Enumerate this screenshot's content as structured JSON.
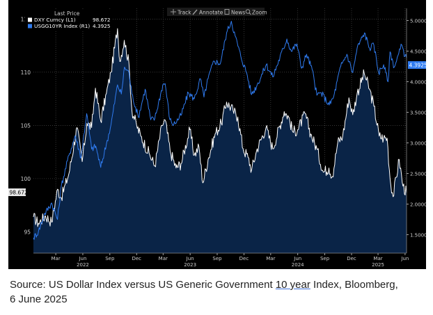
{
  "toolbar": {
    "items": [
      {
        "icon": "crosshair-icon",
        "label": "Track"
      },
      {
        "icon": "pencil-icon",
        "label": "Annotate"
      },
      {
        "icon": "news-icon",
        "label": "News"
      },
      {
        "icon": "magnifier-icon",
        "label": "Zoom"
      }
    ]
  },
  "legend": {
    "header": "Last Price",
    "entries": [
      {
        "name": "DXY Curncy  (L1)",
        "value": "98.672",
        "color": "#ffffff"
      },
      {
        "name": "USGG10YR Index  (R1)",
        "value": "4.3925",
        "color": "#2f7bf0"
      }
    ]
  },
  "caption": {
    "prefix": "Source: US Dollar Index versus US Generic Government ",
    "underlined": "10 year",
    "suffix": " Index, Bloomberg,",
    "line2": "6 June 2025"
  },
  "colors": {
    "background": "#000000",
    "area_fill": "#0a2447",
    "dxy_line": "#ffffff",
    "yield_line": "#2f7bf0",
    "grid": "#5a5a5a",
    "axis_text": "#cfcfcf"
  },
  "chart_data": {
    "type": "line",
    "x_range": [
      "2021-12-15",
      "2025-06-06"
    ],
    "x_ticks": [
      {
        "date": "2022-03-01",
        "label": "Mar",
        "year": ""
      },
      {
        "date": "2022-06-01",
        "label": "Jun",
        "year": "2022"
      },
      {
        "date": "2022-09-01",
        "label": "Sep",
        "year": ""
      },
      {
        "date": "2022-12-01",
        "label": "Dec",
        "year": ""
      },
      {
        "date": "2023-03-01",
        "label": "Mar",
        "year": ""
      },
      {
        "date": "2023-06-01",
        "label": "Jun",
        "year": "2023"
      },
      {
        "date": "2023-09-01",
        "label": "Sep",
        "year": ""
      },
      {
        "date": "2023-12-01",
        "label": "Dec",
        "year": ""
      },
      {
        "date": "2024-03-01",
        "label": "Mar",
        "year": ""
      },
      {
        "date": "2024-06-01",
        "label": "Jun",
        "year": "2024"
      },
      {
        "date": "2024-09-01",
        "label": "Sep",
        "year": ""
      },
      {
        "date": "2024-12-01",
        "label": "Dec",
        "year": ""
      },
      {
        "date": "2025-03-01",
        "label": "Mar",
        "year": "2025"
      },
      {
        "date": "2025-06-01",
        "label": "Jun",
        "year": ""
      }
    ],
    "left_axis": {
      "min": 93,
      "max": 116,
      "ticks": [
        95,
        100,
        105,
        110,
        115
      ],
      "tick_labels": [
        "95",
        "100",
        "105",
        "110",
        "115"
      ]
    },
    "right_axis": {
      "min": 1.2,
      "max": 5.2,
      "ticks": [
        1.5,
        2.0,
        2.5,
        3.0,
        3.5,
        4.0,
        4.5,
        5.0
      ],
      "tick_labels": [
        "1.5000",
        "2.0000",
        "2.5000",
        "3.0000",
        "3.5000",
        "4.0000",
        "4.5000",
        "5.0000"
      ]
    },
    "last_value_labels": {
      "left": "98.672",
      "right": "4.3925"
    },
    "grid": true,
    "legend_position": "top-left",
    "series": [
      {
        "name": "DXY Curncy",
        "axis": "left",
        "area": true,
        "points": [
          [
            "2021-12-15",
            96.4
          ],
          [
            "2022-01-01",
            95.8
          ],
          [
            "2022-01-25",
            96.5
          ],
          [
            "2022-02-15",
            95.9
          ],
          [
            "2022-03-07",
            99.0
          ],
          [
            "2022-03-20",
            98.2
          ],
          [
            "2022-04-15",
            100.5
          ],
          [
            "2022-05-12",
            104.8
          ],
          [
            "2022-05-30",
            101.6
          ],
          [
            "2022-06-15",
            105.2
          ],
          [
            "2022-07-01",
            104.8
          ],
          [
            "2022-07-14",
            108.5
          ],
          [
            "2022-08-01",
            105.4
          ],
          [
            "2022-08-20",
            108.0
          ],
          [
            "2022-09-05",
            110.0
          ],
          [
            "2022-09-27",
            114.1
          ],
          [
            "2022-10-05",
            111.0
          ],
          [
            "2022-10-20",
            113.0
          ],
          [
            "2022-11-05",
            110.8
          ],
          [
            "2022-11-15",
            106.4
          ],
          [
            "2022-12-01",
            105.0
          ],
          [
            "2022-12-15",
            104.0
          ],
          [
            "2023-01-15",
            102.2
          ],
          [
            "2023-02-01",
            101.2
          ],
          [
            "2023-02-25",
            105.0
          ],
          [
            "2023-03-08",
            105.5
          ],
          [
            "2023-03-25",
            102.6
          ],
          [
            "2023-04-14",
            101.0
          ],
          [
            "2023-05-01",
            101.4
          ],
          [
            "2023-05-31",
            104.6
          ],
          [
            "2023-06-15",
            102.2
          ],
          [
            "2023-07-01",
            103.0
          ],
          [
            "2023-07-14",
            99.6
          ],
          [
            "2023-08-01",
            101.8
          ],
          [
            "2023-08-25",
            104.2
          ],
          [
            "2023-09-15",
            105.2
          ],
          [
            "2023-10-03",
            107.2
          ],
          [
            "2023-10-25",
            106.4
          ],
          [
            "2023-11-10",
            105.8
          ],
          [
            "2023-11-28",
            102.8
          ],
          [
            "2023-12-15",
            102.0
          ],
          [
            "2023-12-27",
            100.8
          ],
          [
            "2024-01-15",
            102.8
          ],
          [
            "2024-02-14",
            104.8
          ],
          [
            "2024-03-08",
            102.8
          ],
          [
            "2024-04-16",
            106.3
          ],
          [
            "2024-05-01",
            105.8
          ],
          [
            "2024-05-15",
            104.4
          ],
          [
            "2024-06-01",
            104.6
          ],
          [
            "2024-06-26",
            106.1
          ],
          [
            "2024-07-15",
            104.2
          ],
          [
            "2024-08-05",
            102.8
          ],
          [
            "2024-08-27",
            100.6
          ],
          [
            "2024-09-15",
            101.0
          ],
          [
            "2024-09-27",
            100.2
          ],
          [
            "2024-10-15",
            103.4
          ],
          [
            "2024-11-01",
            104.0
          ],
          [
            "2024-11-22",
            107.6
          ],
          [
            "2024-12-05",
            106.0
          ],
          [
            "2024-12-20",
            108.0
          ],
          [
            "2025-01-13",
            109.9
          ],
          [
            "2025-01-31",
            108.4
          ],
          [
            "2025-02-15",
            106.8
          ],
          [
            "2025-03-05",
            104.0
          ],
          [
            "2025-03-20",
            103.8
          ],
          [
            "2025-04-01",
            103.8
          ],
          [
            "2025-04-11",
            100.0
          ],
          [
            "2025-04-21",
            98.3
          ],
          [
            "2025-05-12",
            101.8
          ],
          [
            "2025-05-25",
            99.3
          ],
          [
            "2025-06-06",
            98.672
          ]
        ]
      },
      {
        "name": "USGG10YR Index",
        "axis": "right",
        "area": false,
        "points": [
          [
            "2021-12-15",
            1.45
          ],
          [
            "2022-01-01",
            1.55
          ],
          [
            "2022-01-20",
            1.82
          ],
          [
            "2022-02-15",
            2.02
          ],
          [
            "2022-03-07",
            1.75
          ],
          [
            "2022-03-20",
            2.3
          ],
          [
            "2022-04-15",
            2.8
          ],
          [
            "2022-05-06",
            3.12
          ],
          [
            "2022-05-26",
            2.76
          ],
          [
            "2022-06-14",
            3.48
          ],
          [
            "2022-07-01",
            2.9
          ],
          [
            "2022-07-15",
            2.95
          ],
          [
            "2022-08-01",
            2.6
          ],
          [
            "2022-08-20",
            2.98
          ],
          [
            "2022-09-05",
            3.3
          ],
          [
            "2022-09-27",
            3.95
          ],
          [
            "2022-10-10",
            3.8
          ],
          [
            "2022-10-21",
            4.24
          ],
          [
            "2022-11-05",
            4.15
          ],
          [
            "2022-11-15",
            3.8
          ],
          [
            "2022-12-07",
            3.42
          ],
          [
            "2022-12-30",
            3.88
          ],
          [
            "2023-01-18",
            3.38
          ],
          [
            "2023-02-01",
            3.4
          ],
          [
            "2023-02-28",
            3.95
          ],
          [
            "2023-03-08",
            3.97
          ],
          [
            "2023-03-24",
            3.38
          ],
          [
            "2023-04-06",
            3.3
          ],
          [
            "2023-05-01",
            3.45
          ],
          [
            "2023-05-26",
            3.82
          ],
          [
            "2023-06-15",
            3.72
          ],
          [
            "2023-07-06",
            4.05
          ],
          [
            "2023-07-18",
            3.75
          ],
          [
            "2023-08-01",
            4.05
          ],
          [
            "2023-08-21",
            4.34
          ],
          [
            "2023-09-12",
            4.3
          ],
          [
            "2023-10-03",
            4.8
          ],
          [
            "2023-10-19",
            4.99
          ],
          [
            "2023-11-01",
            4.75
          ],
          [
            "2023-11-20",
            4.42
          ],
          [
            "2023-12-10",
            4.15
          ],
          [
            "2023-12-27",
            3.79
          ],
          [
            "2024-01-15",
            3.95
          ],
          [
            "2024-02-15",
            4.28
          ],
          [
            "2024-03-08",
            4.08
          ],
          [
            "2024-04-25",
            4.7
          ],
          [
            "2024-05-10",
            4.5
          ],
          [
            "2024-05-29",
            4.62
          ],
          [
            "2024-06-14",
            4.22
          ],
          [
            "2024-07-01",
            4.45
          ],
          [
            "2024-07-20",
            4.2
          ],
          [
            "2024-08-05",
            3.78
          ],
          [
            "2024-08-20",
            3.82
          ],
          [
            "2024-09-16",
            3.62
          ],
          [
            "2024-10-01",
            3.75
          ],
          [
            "2024-10-25",
            4.25
          ],
          [
            "2024-11-15",
            4.45
          ],
          [
            "2024-12-05",
            4.15
          ],
          [
            "2024-12-20",
            4.55
          ],
          [
            "2025-01-14",
            4.8
          ],
          [
            "2025-01-31",
            4.55
          ],
          [
            "2025-02-15",
            4.6
          ],
          [
            "2025-03-03",
            4.15
          ],
          [
            "2025-03-20",
            4.28
          ],
          [
            "2025-04-04",
            4.0
          ],
          [
            "2025-04-11",
            4.49
          ],
          [
            "2025-04-25",
            4.24
          ],
          [
            "2025-05-21",
            4.6
          ],
          [
            "2025-06-01",
            4.42
          ],
          [
            "2025-06-06",
            4.3925
          ]
        ]
      }
    ]
  }
}
